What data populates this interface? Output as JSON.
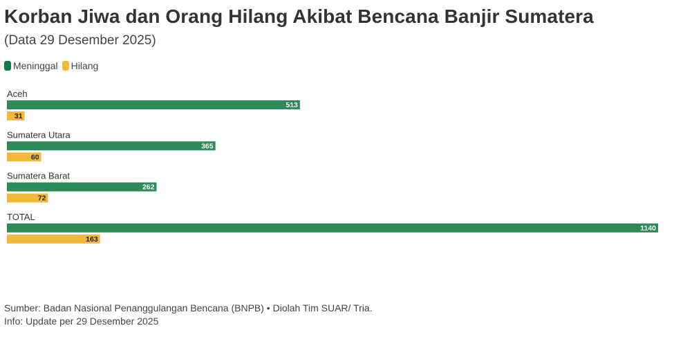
{
  "title": "Korban Jiwa dan Orang Hilang Akibat Bencana Banjir Sumatera",
  "subtitle": "(Data 29 Desember 2025)",
  "legend": [
    {
      "label": "Meninggal",
      "color": "#2e8b57"
    },
    {
      "label": "Hilang",
      "color": "#f0b93a"
    }
  ],
  "chart_data": {
    "type": "bar",
    "orientation": "horizontal",
    "categories": [
      "Aceh",
      "Sumatera Utara",
      "Sumatera Barat",
      "TOTAL"
    ],
    "series": [
      {
        "name": "Meninggal",
        "color": "#2e8b57",
        "values": [
          513,
          365,
          262,
          1140
        ]
      },
      {
        "name": "Hilang",
        "color": "#f0b93a",
        "values": [
          31,
          60,
          72,
          163
        ]
      }
    ],
    "xlim": [
      0,
      1140
    ],
    "grid": false,
    "legend_position": "top-left",
    "data_labels": true
  },
  "footer": {
    "source": "Sumber: Badan Nasional Penanggulangan Bencana (BNPB) • Diolah Tim SUAR/ Tria.",
    "info": "Info: Update per 29 Desember 2025"
  }
}
